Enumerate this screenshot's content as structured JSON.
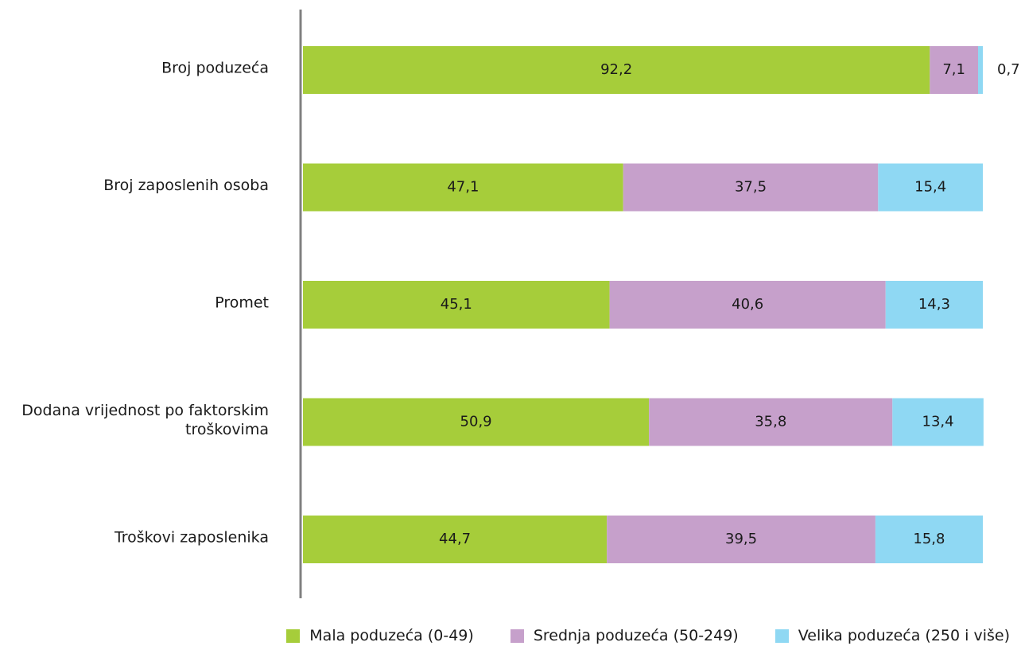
{
  "chart_data": {
    "type": "bar",
    "orientation": "horizontal",
    "stacked": true,
    "categories": [
      [
        "Broj poduzeća"
      ],
      [
        "Broj zaposlenih osoba"
      ],
      [
        "Promet"
      ],
      [
        "Dodana vrijednost po faktorskim",
        "troškovima"
      ],
      [
        "Troškovi zaposlenika"
      ]
    ],
    "series": [
      {
        "name": "Mala poduzeća (0-49)",
        "color": "#a6cd3a",
        "values": [
          92.2,
          47.1,
          45.1,
          50.9,
          44.7
        ],
        "labels": [
          "92,2",
          "47,1",
          "45,1",
          "50,9",
          "44,7"
        ]
      },
      {
        "name": "Srednja poduzeća (50-249)",
        "color": "#c6a0cb",
        "values": [
          7.1,
          37.5,
          40.6,
          35.8,
          39.5
        ],
        "labels": [
          "7,1",
          "37,5",
          "40,6",
          "35,8",
          "39,5"
        ]
      },
      {
        "name": "Velika poduzeća (250 i više)",
        "color": "#8fd8f3",
        "values": [
          0.7,
          15.4,
          14.3,
          13.4,
          15.8
        ],
        "labels": [
          "0,7",
          "15,4",
          "14,3",
          "13,4",
          "15,8"
        ]
      }
    ],
    "xlim": [
      0,
      100
    ],
    "title": "",
    "xlabel": "",
    "ylabel": "",
    "grid": false,
    "legend_position": "bottom-right"
  }
}
